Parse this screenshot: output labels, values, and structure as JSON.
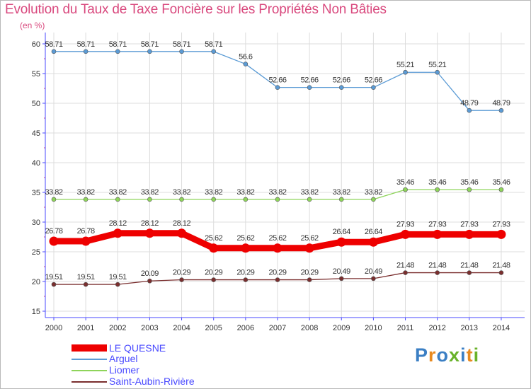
{
  "chart_data": {
    "type": "line",
    "title": "Evolution du Taux de Taxe Foncière sur les Propriétés Non Bâties",
    "ylabel": "(en %)",
    "xlabel": "",
    "ylim": [
      15,
      60
    ],
    "yticks": [
      15,
      20,
      25,
      30,
      35,
      40,
      45,
      50,
      55,
      60
    ],
    "grid": true,
    "categories": [
      "2000",
      "2001",
      "2002",
      "2003",
      "2004",
      "2005",
      "2006",
      "2007",
      "2008",
      "2009",
      "2010",
      "2011",
      "2012",
      "2013",
      "2014"
    ],
    "series": [
      {
        "name": "Arguel",
        "color": "#5b9bd5",
        "values": [
          58.71,
          58.71,
          58.71,
          58.71,
          58.71,
          58.71,
          56.6,
          52.66,
          52.66,
          52.66,
          52.66,
          55.21,
          55.21,
          48.79,
          48.79
        ],
        "labels": [
          "58.71",
          "58.71",
          "58.71",
          "58.71",
          "58.71",
          "58.71",
          "56.6",
          "52.66",
          "52.66",
          "52.66",
          "52.66",
          "55.21",
          "55.21",
          "48.79",
          "48.79"
        ]
      },
      {
        "name": "Liomer",
        "color": "#8ed45a",
        "values": [
          33.82,
          33.82,
          33.82,
          33.82,
          33.82,
          33.82,
          33.82,
          33.82,
          33.82,
          33.82,
          33.82,
          35.46,
          35.46,
          35.46,
          35.46
        ],
        "labels": [
          "33.82",
          "33.82",
          "33.82",
          "33.82",
          "33.82",
          "33.82",
          "33.82",
          "33.82",
          "33.82",
          "33.82",
          "33.82",
          "35.46",
          "35.46",
          "35.46",
          "35.46"
        ]
      },
      {
        "name": "LE QUESNE",
        "color": "#ee0000",
        "emphasis": true,
        "values": [
          26.78,
          26.78,
          28.12,
          28.12,
          28.12,
          25.62,
          25.62,
          25.62,
          25.62,
          26.64,
          26.64,
          27.93,
          27.93,
          27.93,
          27.93
        ],
        "labels": [
          "26.78",
          "26.78",
          "28.12",
          "28.12",
          "28.12",
          "25.62",
          "25.62",
          "25.62",
          "25.62",
          "26.64",
          "26.64",
          "27.93",
          "27.93",
          "27.93",
          "27.93"
        ]
      },
      {
        "name": "Saint-Aubin-Rivière",
        "color": "#7a2e2e",
        "values": [
          19.51,
          19.51,
          19.51,
          20.09,
          20.29,
          20.29,
          20.29,
          20.29,
          20.29,
          20.49,
          20.49,
          21.48,
          21.48,
          21.48,
          21.48
        ],
        "labels": [
          "19.51",
          "19.51",
          "19.51",
          "20.09",
          "20.29",
          "20.29",
          "20.29",
          "20.29",
          "20.29",
          "20.49",
          "20.49",
          "21.48",
          "21.48",
          "21.48",
          "21.48"
        ]
      }
    ]
  },
  "legend": {
    "items": [
      {
        "name": "LE QUESNE",
        "color": "#ee0000",
        "thick": true
      },
      {
        "name": "Arguel",
        "color": "#5b9bd5"
      },
      {
        "name": "Liomer",
        "color": "#8ed45a"
      },
      {
        "name": "Saint-Aubin-Rivière",
        "color": "#7a2e2e"
      }
    ]
  },
  "logo": {
    "letters": [
      "P",
      "r",
      "o",
      "x",
      "i",
      "t",
      "i"
    ],
    "text": "Proxiti"
  },
  "colors": {
    "title": "#d9497e",
    "axis": "#4a4aff",
    "label": "#333333",
    "legend_text": "#4a4aff"
  }
}
